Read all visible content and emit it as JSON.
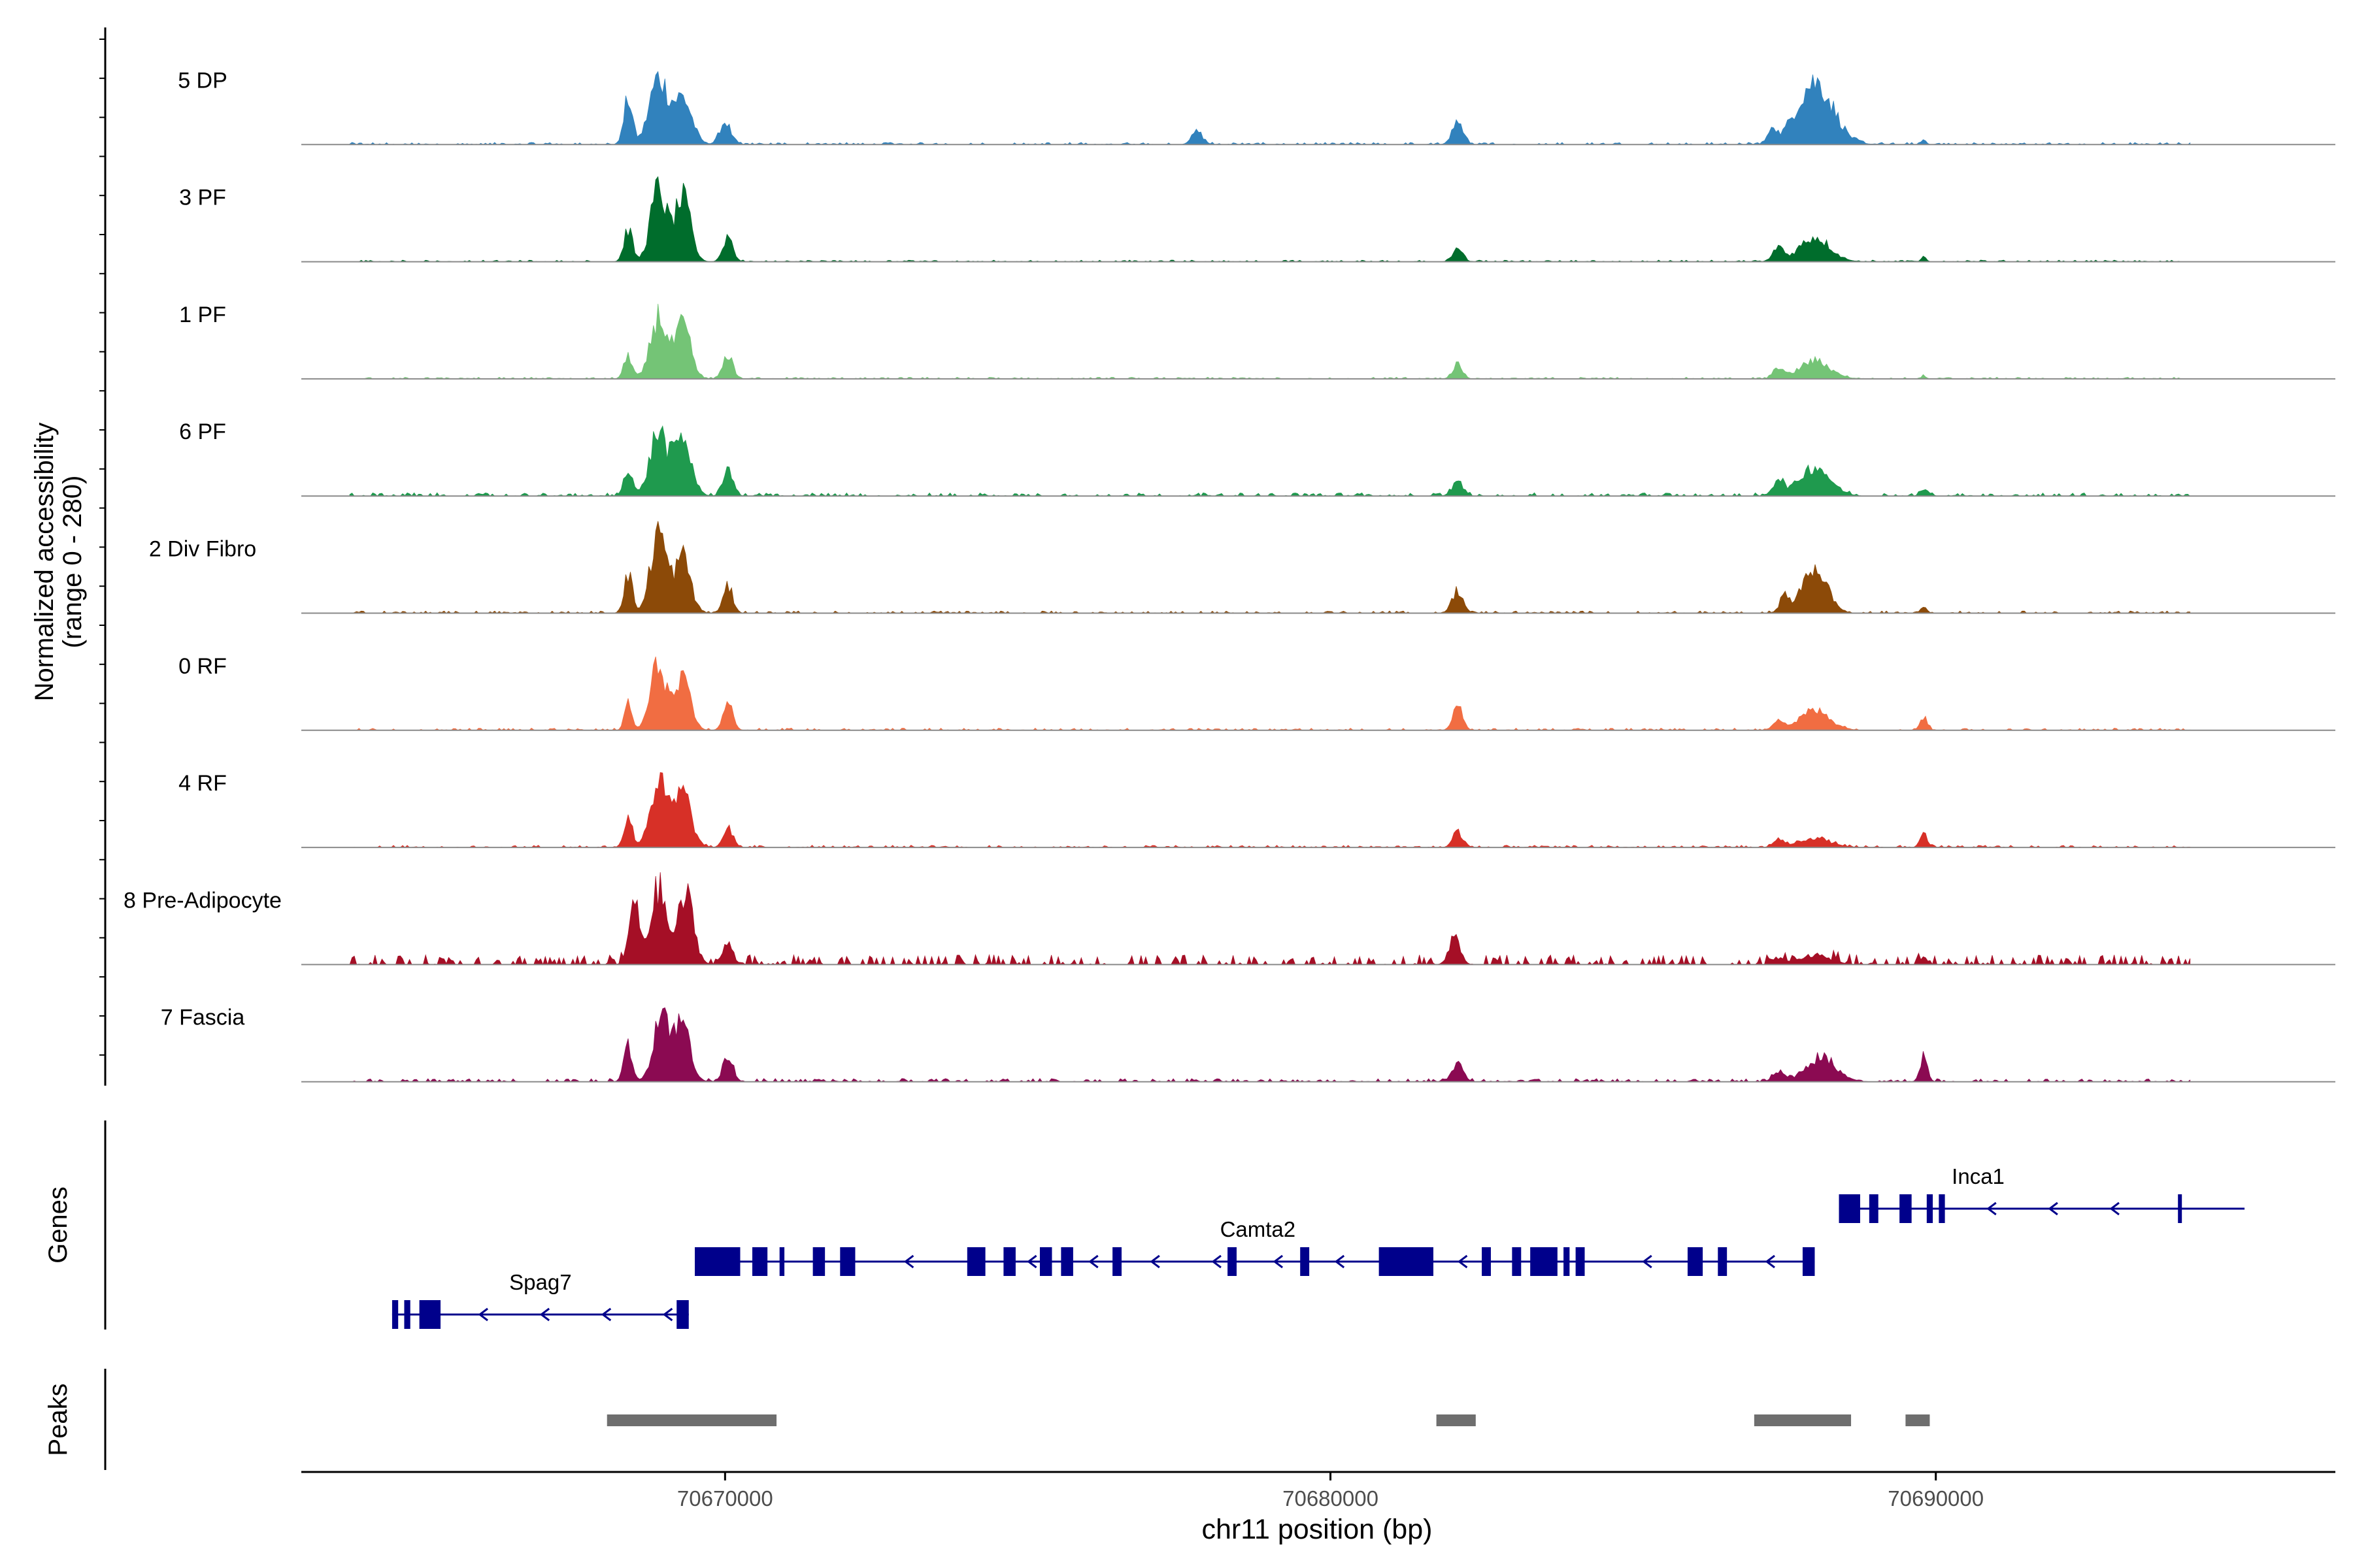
{
  "chart_data": {
    "type": "area",
    "chromosome": "chr11",
    "xlim": [
      70663000,
      70696600
    ],
    "xlabel": "chr11 position (bp)",
    "x_ticks": [
      70670000,
      70680000,
      70690000
    ],
    "x_tick_labels": [
      "70670000",
      "70680000",
      "70690000"
    ],
    "ylabel_line1": "Normalized accessibility",
    "ylabel_line2": "(range 0 - 280)",
    "ylim": [
      0,
      280
    ],
    "colors": {
      "5 DP": "#3182bd",
      "3 PF": "#006d2c",
      "1 PF": "#74c476",
      "6 PF": "#1f9a4e",
      "2 Div Fibro": "#8c4a08",
      "0 RF": "#f16d42",
      "4 RF": "#d73027",
      "8 Pre-Adipocyte": "#a50f26",
      "7 Fascia": "#8b0a52"
    },
    "series": [
      {
        "name": "5 DP",
        "peaks": [
          [
            70668400,
            70,
            140
          ],
          [
            70668900,
            150,
            200
          ],
          [
            70669300,
            150,
            140
          ],
          [
            70670000,
            90,
            70
          ],
          [
            70677800,
            90,
            40
          ],
          [
            70682100,
            90,
            70
          ],
          [
            70687300,
            60,
            50
          ],
          [
            70688000,
            300,
            190
          ],
          [
            70689800,
            40,
            15
          ]
        ],
        "noise": 4
      },
      {
        "name": "3 PF",
        "peaks": [
          [
            70668400,
            70,
            100
          ],
          [
            70668900,
            130,
            220
          ],
          [
            70669300,
            130,
            190
          ],
          [
            70670050,
            80,
            80
          ],
          [
            70682100,
            80,
            45
          ],
          [
            70687400,
            80,
            45
          ],
          [
            70688000,
            250,
            75
          ],
          [
            70689800,
            40,
            15
          ]
        ],
        "noise": 3
      },
      {
        "name": "1 PF",
        "peaks": [
          [
            70668400,
            70,
            70
          ],
          [
            70668900,
            130,
            190
          ],
          [
            70669300,
            130,
            160
          ],
          [
            70670050,
            80,
            75
          ],
          [
            70682100,
            80,
            45
          ],
          [
            70687400,
            80,
            35
          ],
          [
            70688000,
            250,
            55
          ],
          [
            70689800,
            40,
            8
          ]
        ],
        "noise": 3
      },
      {
        "name": "6 PF",
        "peaks": [
          [
            70668400,
            70,
            90
          ],
          [
            70668900,
            140,
            195
          ],
          [
            70669300,
            140,
            175
          ],
          [
            70670050,
            80,
            90
          ],
          [
            70682100,
            90,
            45
          ],
          [
            70687400,
            90,
            50
          ],
          [
            70688000,
            250,
            90
          ],
          [
            70689800,
            60,
            20
          ]
        ],
        "noise": 6
      },
      {
        "name": "2 Div Fibro",
        "peaks": [
          [
            70668400,
            70,
            120
          ],
          [
            70668900,
            130,
            250
          ],
          [
            70669300,
            130,
            170
          ],
          [
            70670050,
            80,
            80
          ],
          [
            70682100,
            90,
            70
          ],
          [
            70687500,
            80,
            50
          ],
          [
            70688000,
            200,
            140
          ],
          [
            70689800,
            50,
            20
          ]
        ],
        "noise": 4
      },
      {
        "name": "0 RF",
        "peaks": [
          [
            70668400,
            60,
            80
          ],
          [
            70668900,
            130,
            200
          ],
          [
            70669300,
            130,
            145
          ],
          [
            70670050,
            80,
            80
          ],
          [
            70682100,
            80,
            75
          ],
          [
            70687400,
            80,
            35
          ],
          [
            70688000,
            250,
            60
          ],
          [
            70689800,
            60,
            40
          ]
        ],
        "noise": 4
      },
      {
        "name": "4 RF",
        "peaks": [
          [
            70668400,
            70,
            90
          ],
          [
            70668900,
            140,
            195
          ],
          [
            70669300,
            140,
            165
          ],
          [
            70670050,
            80,
            60
          ],
          [
            70682100,
            80,
            50
          ],
          [
            70687400,
            80,
            25
          ],
          [
            70688000,
            250,
            30
          ],
          [
            70689800,
            60,
            40
          ]
        ],
        "noise": 4
      },
      {
        "name": "8 Pre-Adipocyte",
        "peaks": [
          [
            70668500,
            90,
            180
          ],
          [
            70668900,
            130,
            230
          ],
          [
            70669350,
            130,
            210
          ],
          [
            70670050,
            80,
            70
          ],
          [
            70682050,
            90,
            90
          ],
          [
            70687400,
            90,
            20
          ],
          [
            70688000,
            250,
            30
          ],
          [
            70689800,
            60,
            20
          ]
        ],
        "noise": 18
      },
      {
        "name": "7 Fascia",
        "peaks": [
          [
            70668400,
            70,
            110
          ],
          [
            70668950,
            130,
            220
          ],
          [
            70669300,
            130,
            175
          ],
          [
            70670050,
            80,
            85
          ],
          [
            70682100,
            90,
            55
          ],
          [
            70687400,
            90,
            30
          ],
          [
            70688100,
            250,
            75
          ],
          [
            70689800,
            60,
            80
          ]
        ],
        "noise": 6
      }
    ],
    "genes_label": "Genes",
    "gene_color": "#00008b",
    "genes": [
      {
        "name": "Spag7",
        "start": 70664500,
        "end": 70669400,
        "row": 2,
        "strand": "-",
        "label_pos": 70666950,
        "exons": [
          [
            70664500,
            70664600
          ],
          [
            70664700,
            70664800
          ],
          [
            70664950,
            70665300
          ],
          [
            70669200,
            70669400
          ]
        ]
      },
      {
        "name": "Camta2",
        "start": 70669500,
        "end": 70688000,
        "row": 1,
        "strand": "-",
        "label_pos": 70678800,
        "exons": [
          [
            70669500,
            70670250
          ],
          [
            70670450,
            70670700
          ],
          [
            70670900,
            70670980
          ],
          [
            70671450,
            70671650
          ],
          [
            70671900,
            70672150
          ],
          [
            70674000,
            70674300
          ],
          [
            70674600,
            70674800
          ],
          [
            70675200,
            70675400
          ],
          [
            70675550,
            70675750
          ],
          [
            70676400,
            70676550
          ],
          [
            70678300,
            70678450
          ],
          [
            70679500,
            70679650
          ],
          [
            70680800,
            70681700
          ],
          [
            70682500,
            70682650
          ],
          [
            70683000,
            70683150
          ],
          [
            70683300,
            70683750
          ],
          [
            70683850,
            70683950
          ],
          [
            70684050,
            70684200
          ],
          [
            70685900,
            70686150
          ],
          [
            70686400,
            70686550
          ],
          [
            70687800,
            70688000
          ]
        ]
      },
      {
        "name": "Inca1",
        "start": 70688400,
        "end": 70695100,
        "row": 0,
        "strand": "-",
        "label_pos": 70690700,
        "exons": [
          [
            70688400,
            70688750
          ],
          [
            70688900,
            70689050
          ],
          [
            70689400,
            70689600
          ],
          [
            70689850,
            70689950
          ],
          [
            70690050,
            70690150
          ],
          [
            70694000,
            70694050
          ]
        ]
      }
    ],
    "peaks_label": "Peaks",
    "peak_color": "#6e6e6e",
    "peaks": [
      [
        70668050,
        70670850
      ],
      [
        70681750,
        70682400
      ],
      [
        70687000,
        70688600
      ],
      [
        70689500,
        70689900
      ]
    ]
  }
}
